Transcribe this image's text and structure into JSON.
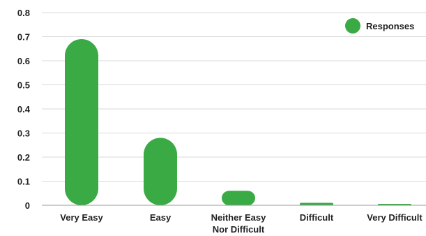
{
  "chart_data": {
    "type": "bar",
    "categories": [
      [
        "Very Easy"
      ],
      [
        "Easy"
      ],
      [
        "Neither Easy",
        "Nor Difficult"
      ],
      [
        "Difficult"
      ],
      [
        "Very Difficult"
      ]
    ],
    "series": [
      {
        "name": "Responses",
        "values": [
          0.69,
          0.28,
          0.06,
          0.01,
          0.005
        ]
      }
    ],
    "ylim": [
      0,
      0.8
    ],
    "yticks": [
      "0",
      "0.1",
      "0.2",
      "0.3",
      "0.4",
      "0.5",
      "0.6",
      "0.7",
      "0.8"
    ],
    "grid": true,
    "legend": "top-right",
    "colors": {
      "bar": "#3aaa45",
      "grid": "#d9d9d9",
      "axis": "#999999"
    }
  }
}
